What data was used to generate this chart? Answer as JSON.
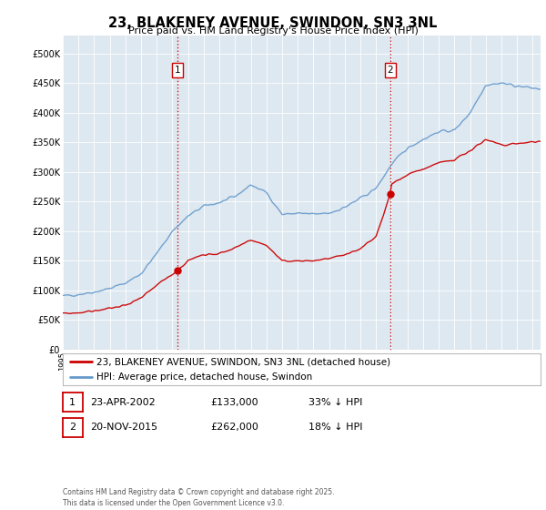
{
  "title": "23, BLAKENEY AVENUE, SWINDON, SN3 3NL",
  "subtitle": "Price paid vs. HM Land Registry's House Price Index (HPI)",
  "ylabel_ticks": [
    "£0",
    "£50K",
    "£100K",
    "£150K",
    "£200K",
    "£250K",
    "£300K",
    "£350K",
    "£400K",
    "£450K",
    "£500K"
  ],
  "ytick_values": [
    0,
    50000,
    100000,
    150000,
    200000,
    250000,
    300000,
    350000,
    400000,
    450000,
    500000
  ],
  "ylim": [
    0,
    530000
  ],
  "xlim_start": 1995.0,
  "xlim_end": 2025.5,
  "sale1_date": 2002.31,
  "sale1_price": 133000,
  "sale2_date": 2015.9,
  "sale2_price": 262000,
  "vline_color": "#cc0000",
  "vline_style": ":",
  "hpi_color": "#6699cc",
  "price_color": "#cc0000",
  "legend_label_price": "23, BLAKENEY AVENUE, SWINDON, SN3 3NL (detached house)",
  "legend_label_hpi": "HPI: Average price, detached house, Swindon",
  "annotation1_label": "1",
  "annotation2_label": "2",
  "table_row1": [
    "1",
    "23-APR-2002",
    "£133,000",
    "33% ↓ HPI"
  ],
  "table_row2": [
    "2",
    "20-NOV-2015",
    "£262,000",
    "18% ↓ HPI"
  ],
  "footer": "Contains HM Land Registry data © Crown copyright and database right 2025.\nThis data is licensed under the Open Government Licence v3.0.",
  "background_color": "#ffffff",
  "plot_bg_color": "#dde8f0"
}
